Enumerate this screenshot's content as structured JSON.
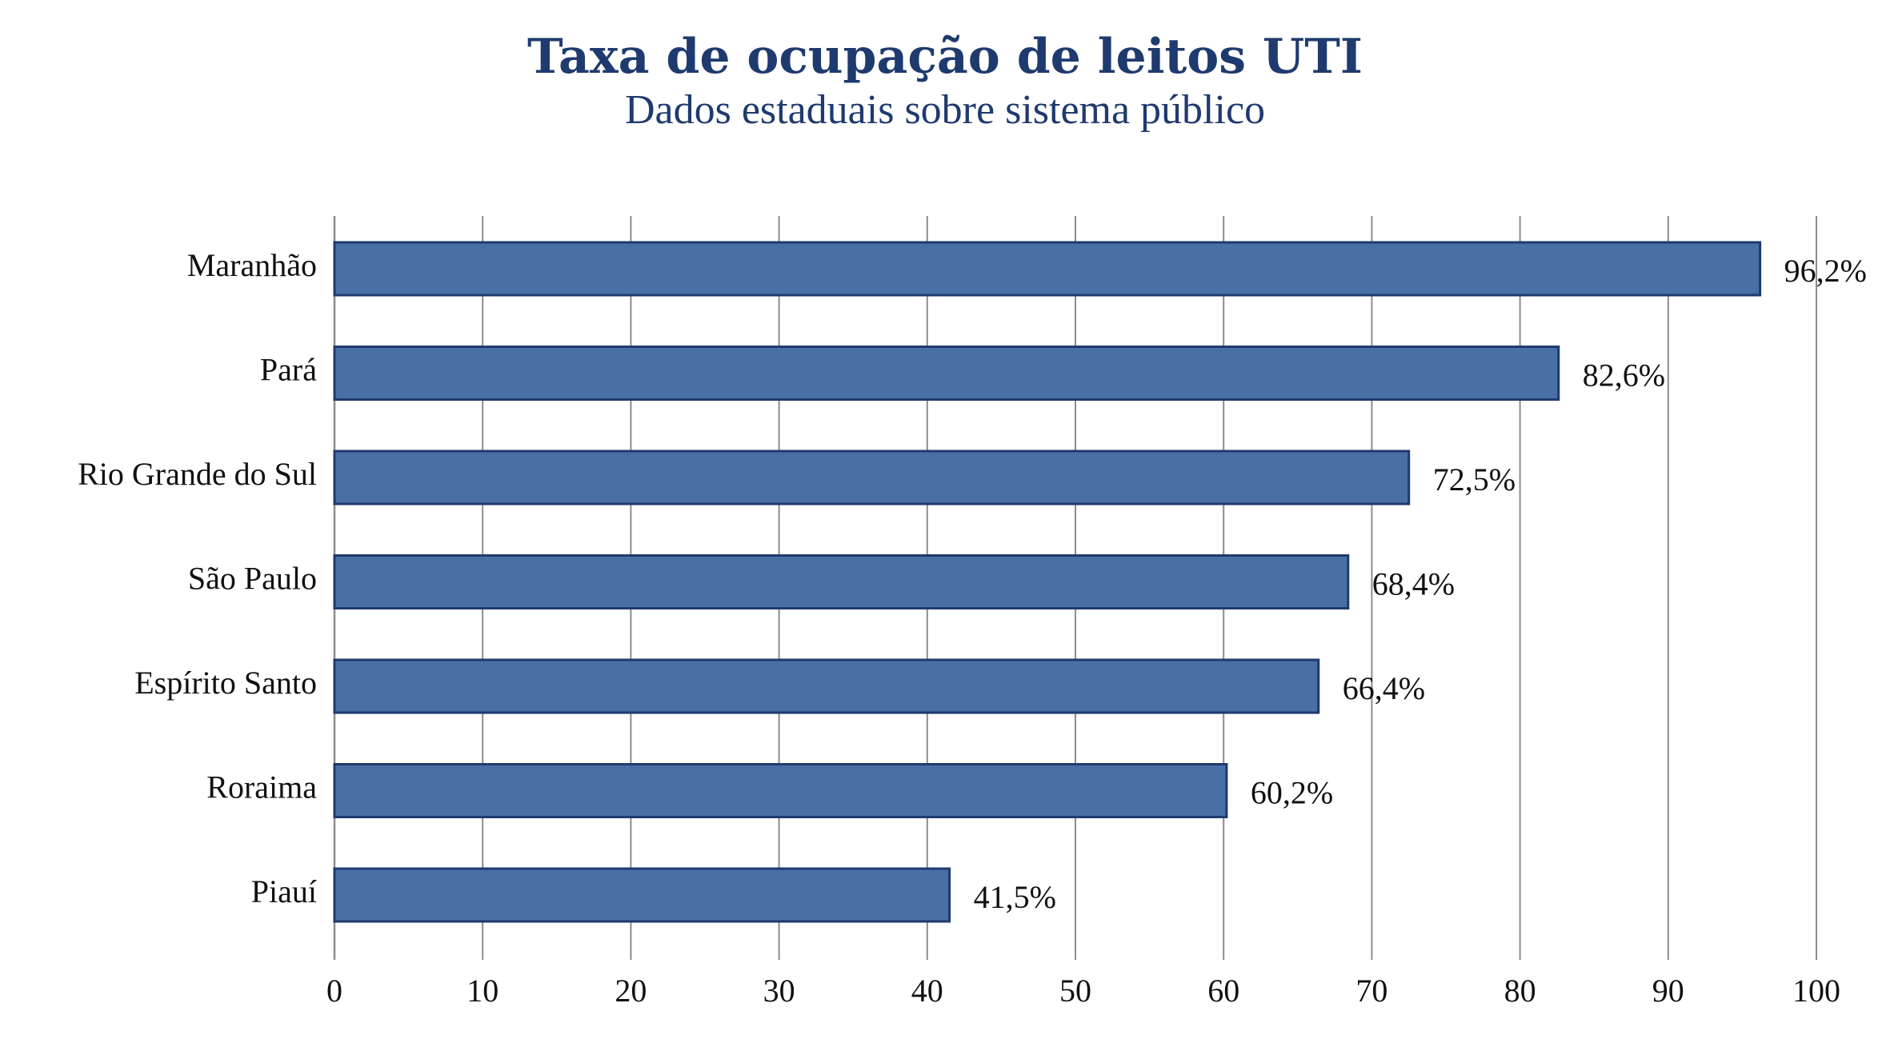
{
  "chart_data": {
    "type": "bar",
    "orientation": "horizontal",
    "title": "Taxa de ocupação de leitos UTI",
    "subtitle": "Dados estaduais sobre sistema público",
    "categories": [
      "Maranhão",
      "Pará",
      "Rio Grande do Sul",
      "São Paulo",
      "Espírito Santo",
      "Roraima",
      "Piauí"
    ],
    "values": [
      96.2,
      82.6,
      72.5,
      68.4,
      66.4,
      60.2,
      41.5
    ],
    "value_labels": [
      "96,2%",
      "82,6%",
      "72,5%",
      "68,4%",
      "66,4%",
      "60,2%",
      "41,5%"
    ],
    "x_ticks": [
      "0",
      "10",
      "20",
      "30",
      "40",
      "50",
      "60",
      "70",
      "80",
      "90",
      "100"
    ],
    "xlim": [
      0,
      100
    ],
    "grid": "vertical",
    "legend": "none",
    "colors": {
      "bar_fill": "#4870a6",
      "bar_stroke": "#1f3a6e",
      "title": "#1f3a6e",
      "grid": "#8c8c8c",
      "text": "#111111"
    }
  }
}
